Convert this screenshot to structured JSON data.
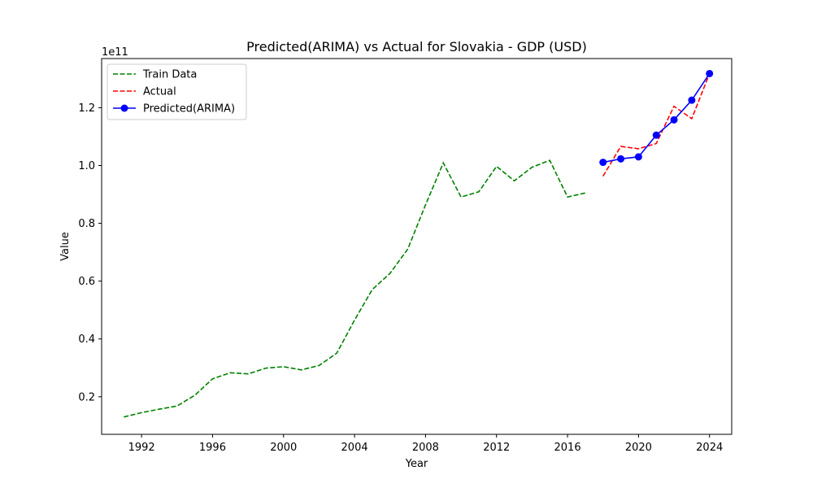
{
  "chart_data": {
    "type": "line",
    "title": "Predicted(ARIMA) vs Actual for Slovakia - GDP (USD)",
    "xlabel": "Year",
    "ylabel": "Value",
    "y_offset_label": "1e11",
    "y_scale": 100000000000.0,
    "xlim": [
      1989.75,
      2025.25
    ],
    "ylim": [
      0.07,
      1.37
    ],
    "x_ticks": [
      1992,
      1996,
      2000,
      2004,
      2008,
      2012,
      2016,
      2020,
      2024
    ],
    "y_ticks": [
      0.2,
      0.4,
      0.6,
      0.8,
      1.0,
      1.2
    ],
    "y_tick_labels": [
      "0.2",
      "0.4",
      "0.6",
      "0.8",
      "1.0",
      "1.2"
    ],
    "legend_position": "top-left",
    "grid": false,
    "series": [
      {
        "name": "Train Data",
        "color": "#008000",
        "style": "dashed",
        "marker": false,
        "x": [
          1991,
          1992,
          1993,
          1994,
          1995,
          1996,
          1997,
          1998,
          1999,
          2000,
          2001,
          2002,
          2003,
          2004,
          2005,
          2006,
          2007,
          2008,
          2009,
          2010,
          2011,
          2012,
          2013,
          2014,
          2015,
          2016,
          2017
        ],
        "y": [
          0.13,
          0.145,
          0.157,
          0.168,
          0.205,
          0.262,
          0.283,
          0.279,
          0.299,
          0.304,
          0.293,
          0.308,
          0.351,
          0.465,
          0.571,
          0.627,
          0.711,
          0.864,
          1.009,
          0.891,
          0.909,
          0.997,
          0.947,
          0.994,
          1.018,
          0.891,
          0.905
        ]
      },
      {
        "name": "Actual",
        "color": "#ff0000",
        "style": "dashed",
        "marker": false,
        "x": [
          2018,
          2019,
          2020,
          2021,
          2022,
          2023,
          2024
        ],
        "y": [
          0.963,
          1.066,
          1.058,
          1.076,
          1.205,
          1.162,
          1.318
        ]
      },
      {
        "name": "Predicted(ARIMA)",
        "color": "#0000ff",
        "style": "solid",
        "marker": true,
        "x": [
          2018,
          2019,
          2020,
          2021,
          2022,
          2023,
          2024
        ],
        "y": [
          1.011,
          1.023,
          1.03,
          1.105,
          1.158,
          1.226,
          1.318
        ]
      }
    ]
  }
}
